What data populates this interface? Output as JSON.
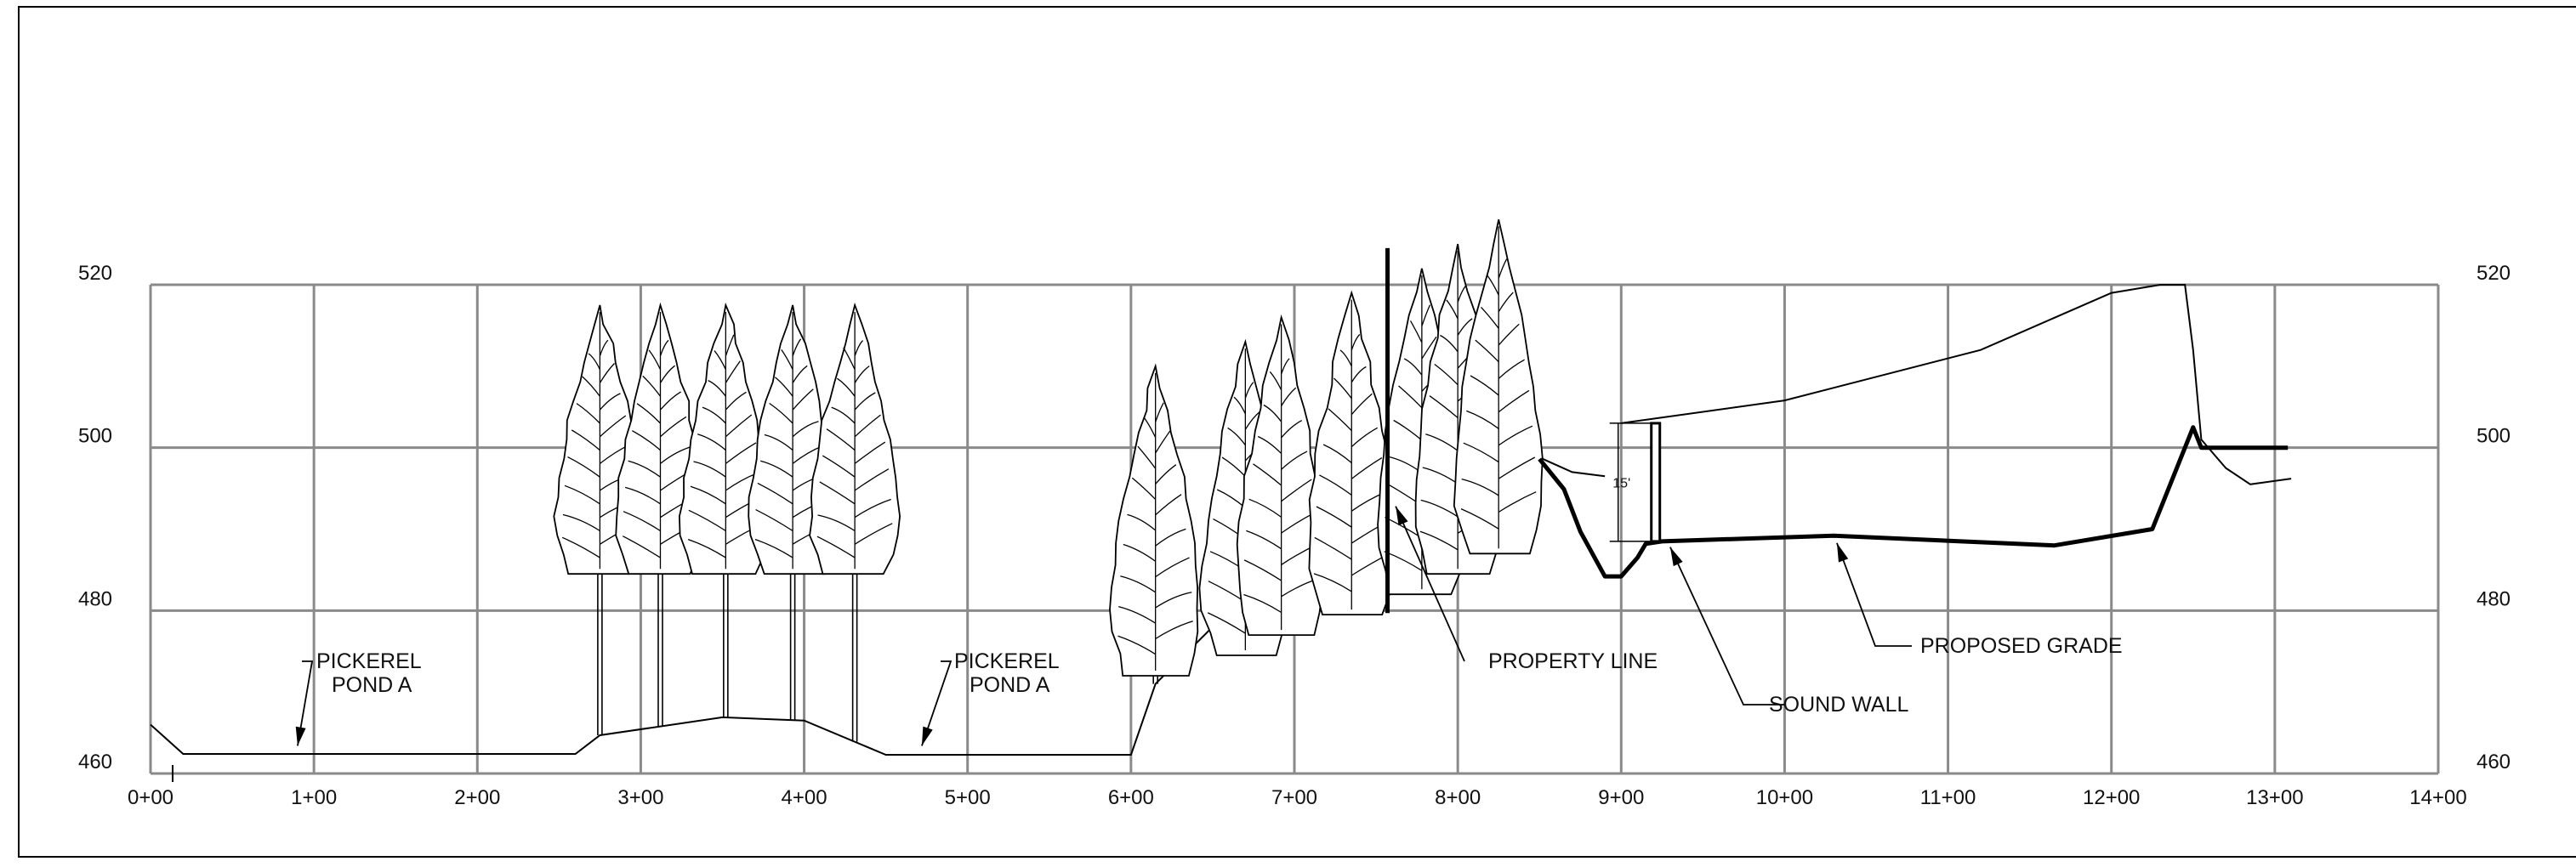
{
  "chart_data": {
    "type": "profile",
    "x_axis": {
      "ticks": [
        "0+00",
        "1+00",
        "2+00",
        "3+00",
        "4+00",
        "5+00",
        "6+00",
        "7+00",
        "8+00",
        "9+00",
        "10+00",
        "11+00",
        "12+00",
        "13+00",
        "14+00"
      ],
      "range": [
        0,
        14
      ]
    },
    "y_axis": {
      "tick_values": [
        520,
        500,
        480,
        460
      ],
      "range": [
        460,
        520
      ]
    },
    "grid": true,
    "series": [
      {
        "name": "PROPOSED GRADE",
        "style": "heavy",
        "points": [
          [
            8.5,
            498.6
          ],
          [
            8.65,
            494.9
          ],
          [
            8.75,
            489.7
          ],
          [
            8.9,
            484.2
          ],
          [
            9.0,
            484.2
          ],
          [
            9.1,
            486.5
          ],
          [
            9.15,
            488.2
          ],
          [
            9.25,
            488.5
          ],
          [
            10.3,
            489.2
          ],
          [
            11.65,
            488.0
          ],
          [
            12.25,
            490.0
          ],
          [
            12.5,
            502.5
          ],
          [
            12.55,
            500.0
          ],
          [
            13.08,
            500.0
          ]
        ]
      }
    ],
    "existing_ground": [
      [
        0,
        466.0
      ],
      [
        0.2,
        462.4
      ],
      [
        2.6,
        462.4
      ],
      [
        2.75,
        464.7
      ],
      [
        3.5,
        466.9
      ],
      [
        4.0,
        466.5
      ],
      [
        4.5,
        462.3
      ],
      [
        6.0,
        462.3
      ],
      [
        6.15,
        471.0
      ],
      [
        6.5,
        478.0
      ],
      [
        6.55,
        479.7
      ],
      [
        6.7,
        478.0
      ],
      [
        6.8,
        480.5
      ],
      [
        7.0,
        484.0
      ],
      [
        7.25,
        487.0
      ],
      [
        7.5,
        489.0
      ],
      [
        7.8,
        490.0
      ],
      [
        7.9,
        491.0
      ],
      [
        8.0,
        494.0
      ],
      [
        8.05,
        497.8
      ],
      [
        8.5,
        498.8
      ],
      [
        8.7,
        497.0
      ],
      [
        8.9,
        496.5
      ]
    ],
    "upper_ground": [
      [
        9.0,
        503.0
      ],
      [
        10.0,
        505.8
      ],
      [
        11.2,
        512.0
      ],
      [
        12.0,
        519.0
      ],
      [
        12.3,
        520.0
      ],
      [
        12.45,
        520.0
      ],
      [
        12.5,
        512.0
      ],
      [
        12.55,
        501.0
      ],
      [
        12.7,
        497.5
      ],
      [
        12.85,
        495.5
      ],
      [
        13.1,
        496.2
      ]
    ],
    "sound_wall": {
      "station": 9.2,
      "bottom": 488.5,
      "top": 503.0,
      "height_label": "15'"
    },
    "property_line": {
      "station": 7.57,
      "top": 524.5,
      "bottom": 479.7
    },
    "tree_groups": [
      {
        "trunks": [
          2.75,
          3.12,
          3.52,
          3.93,
          4.31
        ],
        "crown_bottom": 484.5,
        "crown_top": 517.5
      },
      {
        "trunks": [
          6.15,
          6.7,
          6.92,
          7.35,
          7.78,
          8.0,
          8.25
        ],
        "crown_bottom": 487.0,
        "crown_top": 528.0
      }
    ],
    "annotations": [
      {
        "label": "PICKEREL POND A",
        "lines": [
          "PICKEREL",
          "POND A"
        ],
        "target": [
          0.9,
          463.4
        ]
      },
      {
        "label": "PICKEREL POND A",
        "lines": [
          "PICKEREL",
          "POND A"
        ],
        "target": [
          4.72,
          463.4
        ]
      },
      {
        "label": "PROPERTY LINE",
        "lines": [
          "PROPERTY LINE"
        ],
        "target": [
          7.62,
          492.8
        ]
      },
      {
        "label": "SOUND WALL",
        "lines": [
          "SOUND WALL"
        ],
        "target": [
          9.3,
          487.8
        ]
      },
      {
        "label": "PROPOSED GRADE",
        "lines": [
          "PROPOSED GRADE"
        ],
        "target": [
          10.32,
          488.3
        ]
      }
    ]
  }
}
